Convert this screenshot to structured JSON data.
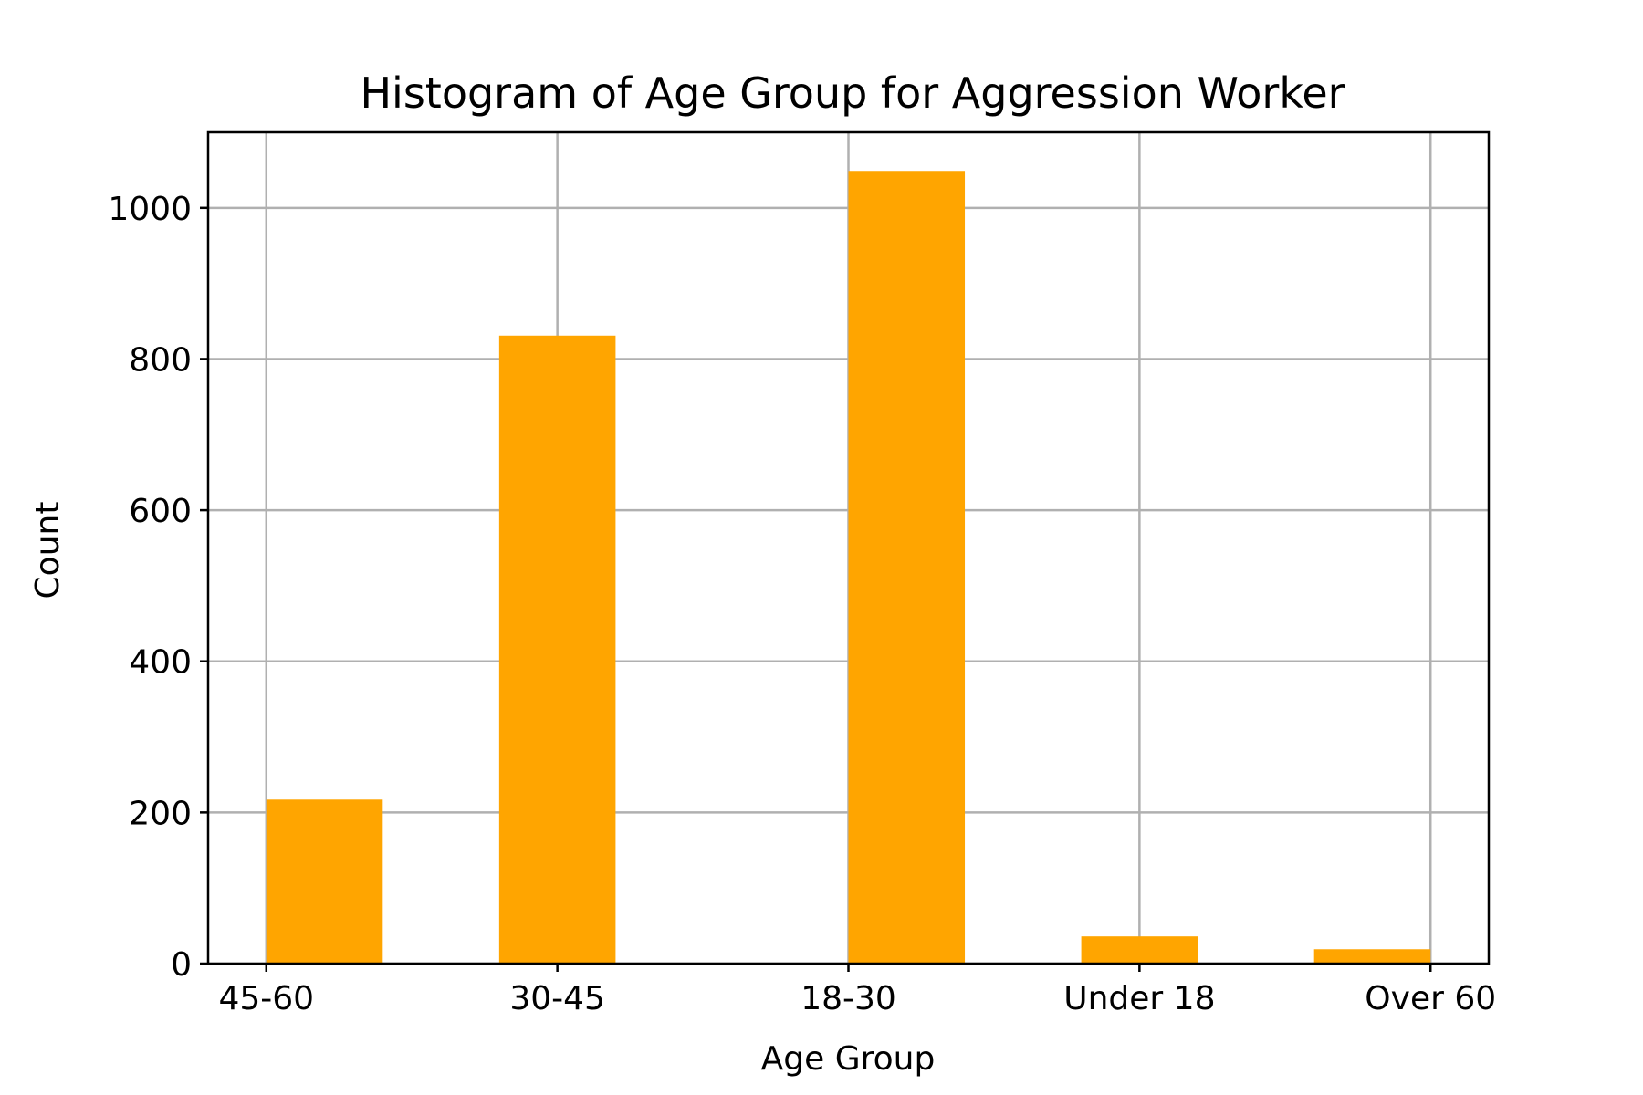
{
  "chart_data": {
    "type": "bar",
    "title": "Histogram of Age Group for Aggression Worker",
    "xlabel": "Age Group",
    "ylabel": "Count",
    "categories": [
      "45-60",
      "30-45",
      "18-30",
      "Under 18",
      "Over 60"
    ],
    "bins": [
      {
        "start": 0.0,
        "end": 0.4,
        "value": 217
      },
      {
        "start": 0.8,
        "end": 1.2,
        "value": 831
      },
      {
        "start": 2.0,
        "end": 2.4,
        "value": 1049
      },
      {
        "start": 2.8,
        "end": 3.2,
        "value": 36
      },
      {
        "start": 3.6,
        "end": 4.0,
        "value": 19
      }
    ],
    "xlim": [
      -0.2,
      4.2
    ],
    "ylim": [
      0,
      1100
    ],
    "yticks": [
      0,
      200,
      400,
      600,
      800,
      1000
    ],
    "grid": true,
    "bar_color": "#FFA500",
    "grid_color": "#B0B0B0"
  }
}
